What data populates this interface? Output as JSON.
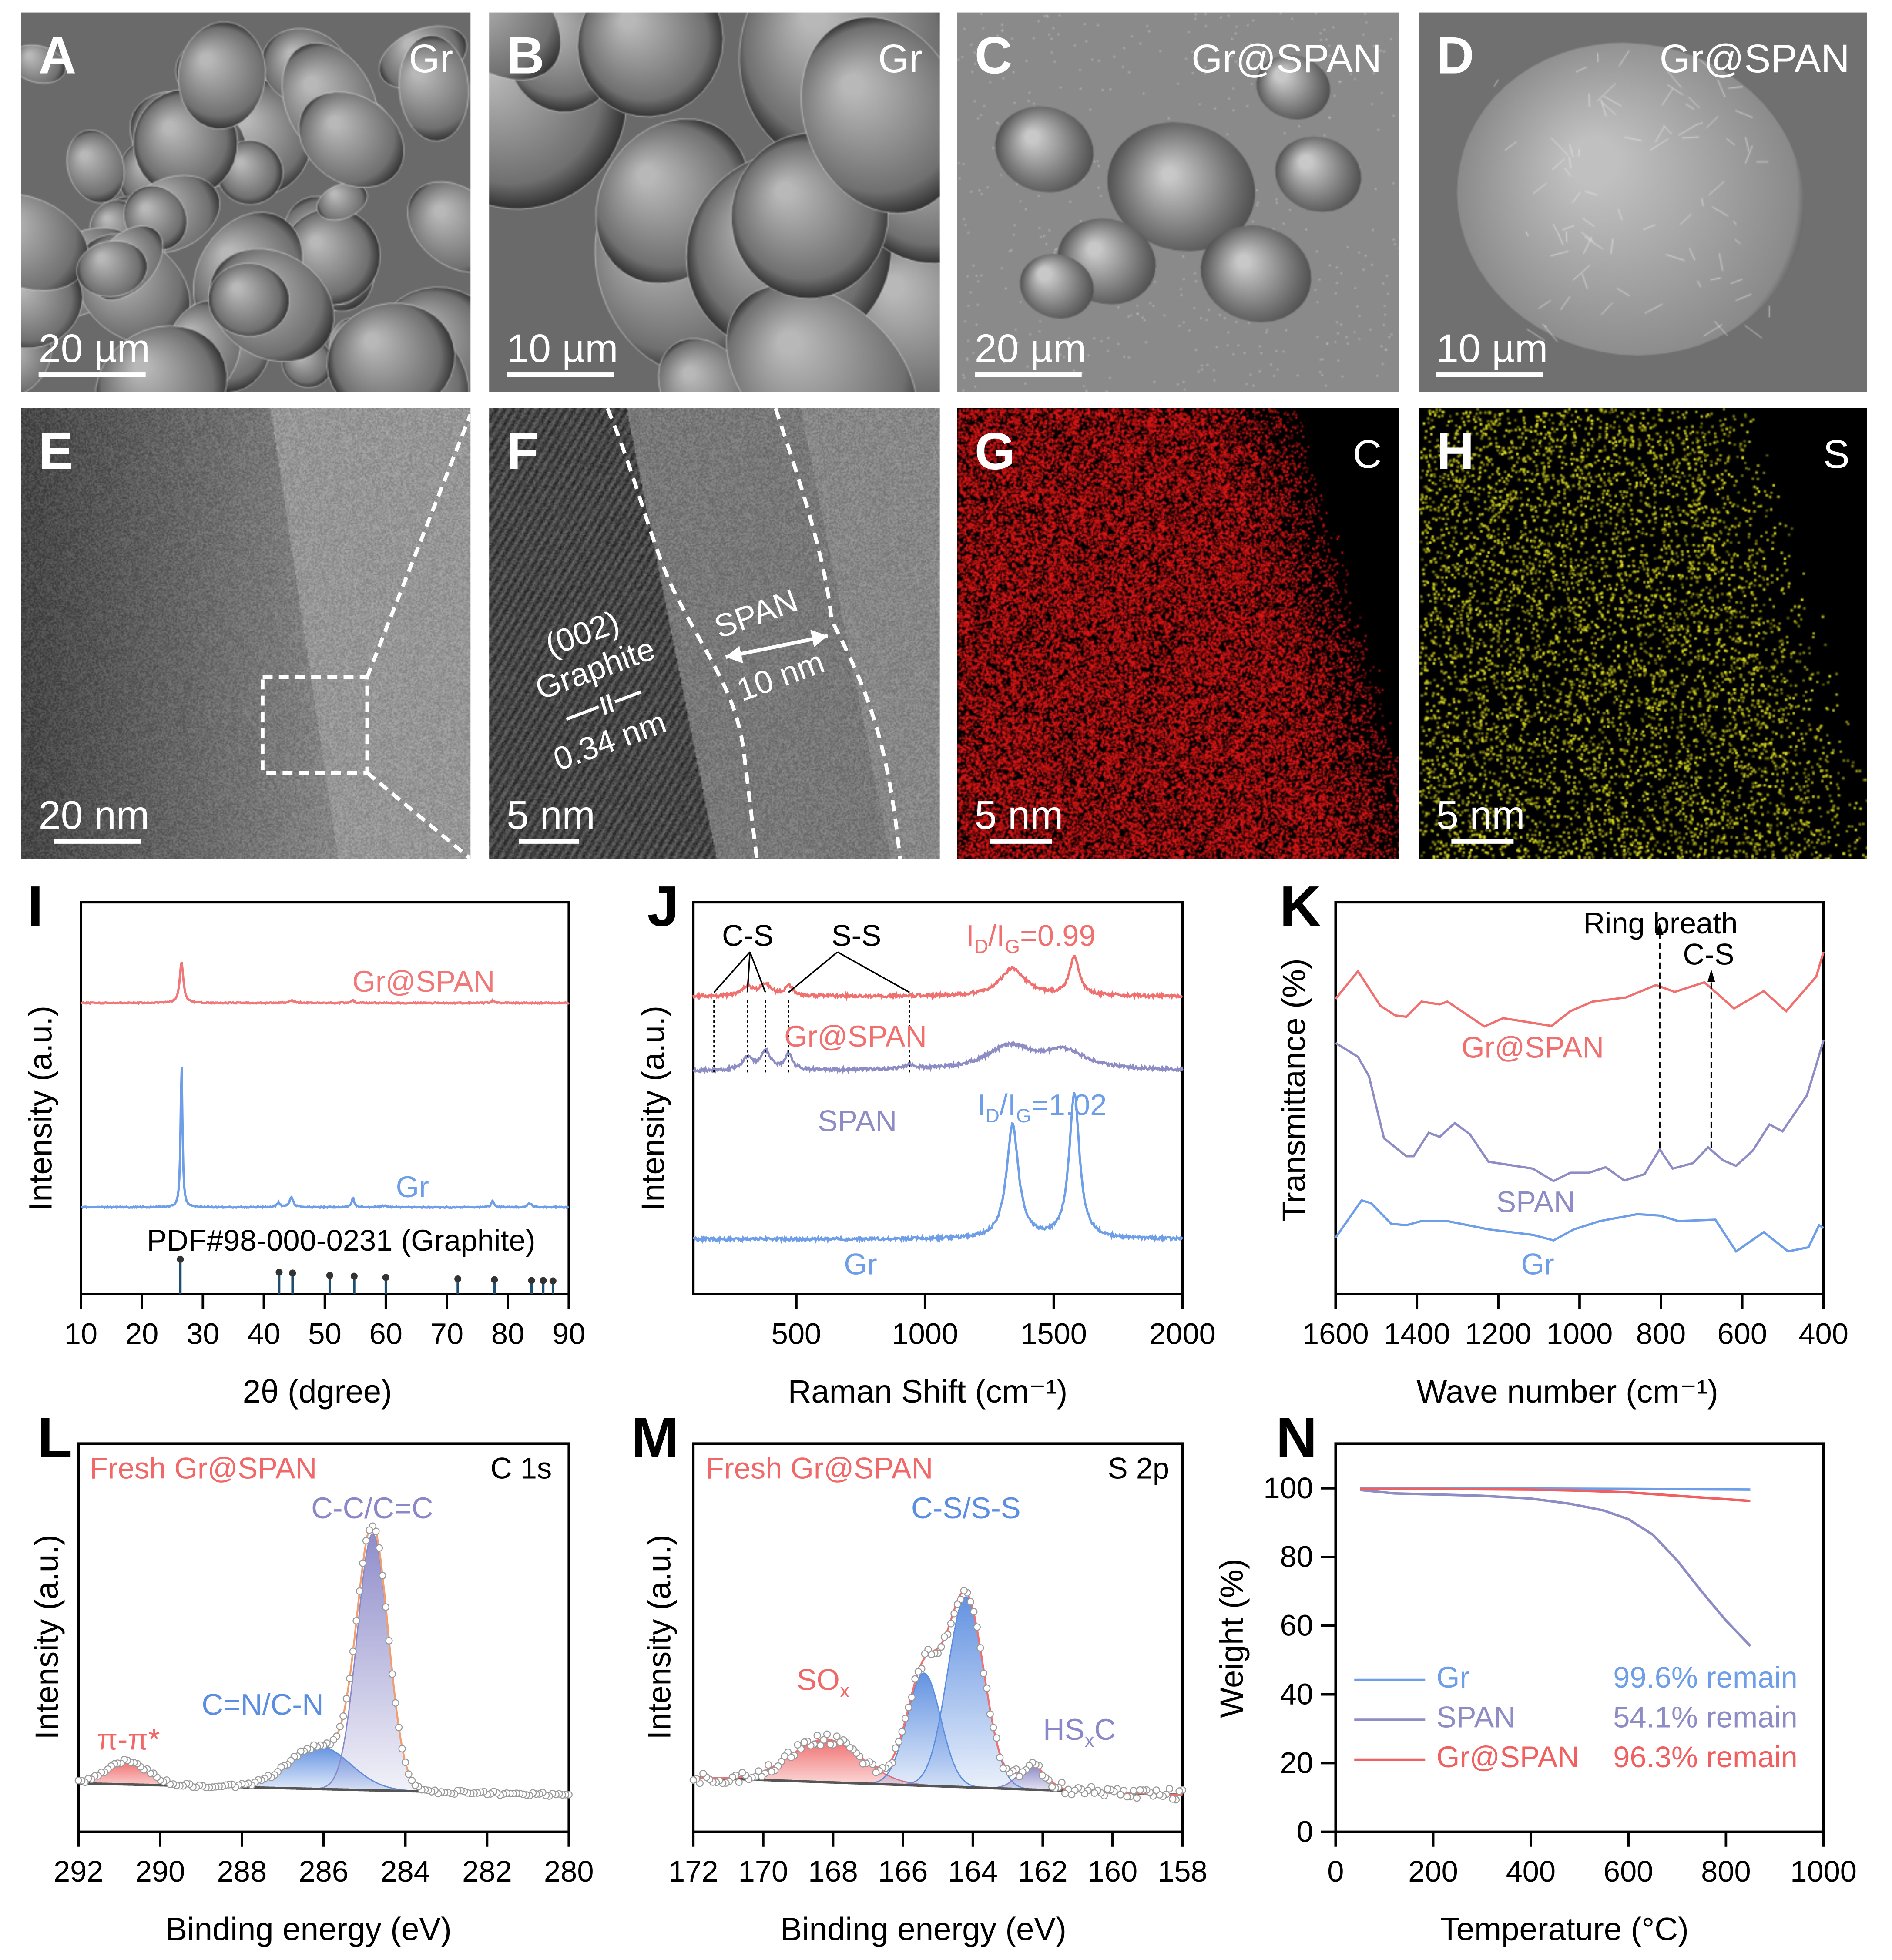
{
  "panels": {
    "A": {
      "letter": "A",
      "label": "Gr",
      "scale_bar": "20 µm"
    },
    "B": {
      "letter": "B",
      "label": "Gr",
      "scale_bar": "10 µm"
    },
    "C": {
      "letter": "C",
      "label": "Gr@SPAN",
      "scale_bar": "20 µm"
    },
    "D": {
      "letter": "D",
      "label": "Gr@SPAN",
      "scale_bar": "10 µm"
    },
    "E": {
      "letter": "E",
      "scale_bar": "20 nm"
    },
    "F": {
      "letter": "F",
      "scale_bar": "5 nm",
      "plane": "(002)",
      "material": "Graphite",
      "d_spacing": "0.34 nm",
      "layer": "SPAN",
      "thickness": "10 nm"
    },
    "G": {
      "letter": "G",
      "label": "C",
      "scale_bar": "5 nm",
      "color": "#e01818"
    },
    "H": {
      "letter": "H",
      "label": "S",
      "scale_bar": "5 nm",
      "color": "#d8d820"
    }
  },
  "chart_data": [
    {
      "panel": "I",
      "type": "line",
      "xlabel": "2θ (dgree)",
      "ylabel": "Intensity (a.u.)",
      "xlim": [
        10,
        90
      ],
      "ylim": [
        0,
        100
      ],
      "xticks": [
        10,
        20,
        30,
        40,
        50,
        60,
        70,
        80,
        90
      ],
      "series": [
        {
          "name": "Gr@SPAN",
          "color": "#f07878",
          "baseline": 74.3,
          "shape": "lorentz",
          "peaks": [
            [
              26.5,
              10.5,
              0.35
            ],
            [
              44.5,
              0.6,
              0.6
            ],
            [
              54.6,
              0.7,
              0.3
            ],
            [
              77.5,
              0.6,
              0.3
            ]
          ]
        },
        {
          "name": "Gr",
          "color": "#6f9ee8",
          "baseline": 22.2,
          "shape": "lorentz",
          "peaks": [
            [
              26.5,
              37,
              0.18
            ],
            [
              42.4,
              1.2,
              0.3
            ],
            [
              44.5,
              2.6,
              0.35
            ],
            [
              54.6,
              2.4,
              0.25
            ],
            [
              59.8,
              0.4,
              0.5
            ],
            [
              77.5,
              1.6,
              0.25
            ],
            [
              83.6,
              1.0,
              0.4
            ]
          ]
        }
      ],
      "reference": {
        "name": "PDF#98-000-0231 (Graphite)",
        "color": "#1f4e6e",
        "positions": [
          26.3,
          42.5,
          44.7,
          50.8,
          54.8,
          60.0,
          71.8,
          77.8,
          83.9,
          85.8,
          87.4
        ],
        "heights": [
          8.9,
          5.6,
          5.4,
          4.8,
          4.6,
          4.3,
          3.9,
          3.7,
          3.5,
          3.5,
          3.4
        ]
      }
    },
    {
      "panel": "J",
      "type": "line",
      "xlabel": "Raman Shift (cm⁻¹)",
      "ylabel": "Intensity (a.u.)",
      "xlim": [
        100,
        2000
      ],
      "ylim": [
        0,
        100
      ],
      "xticks": [
        500,
        1000,
        1500,
        2000
      ],
      "series": [
        {
          "name": "Gr@SPAN",
          "color": "#f07070",
          "baseline": 76,
          "shape": "lorentz",
          "peaks": [
            [
              310,
              2.5,
              25
            ],
            [
              380,
              3,
              25
            ],
            [
              470,
              2.5,
              20
            ],
            [
              1340,
              7,
              60
            ],
            [
              1580,
              10,
              22
            ]
          ]
        },
        {
          "name": "SPAN",
          "color": "#8e8cc4",
          "baseline": 57,
          "shape": "lorentz",
          "peaks": [
            [
              310,
              3,
              25
            ],
            [
              380,
              5,
              22
            ],
            [
              470,
              4,
              18
            ],
            [
              940,
              1,
              30
            ],
            [
              1330,
              6,
              110
            ],
            [
              1545,
              4.5,
              100
            ]
          ]
        },
        {
          "name": "Gr",
          "color": "#6f9ee8",
          "baseline": 14,
          "shape": "lorentz",
          "peaks": [
            [
              1340,
              29,
              28
            ],
            [
              1580,
              37,
              24
            ]
          ]
        }
      ],
      "annotations": {
        "cs": "C-S",
        "ss": "S-S",
        "ratio_gr_span": {
          "i": "I",
          "d": "D",
          "slash": "/I",
          "g": "G",
          "value": "=0.99"
        },
        "ratio_gr": {
          "i": "I",
          "d": "D",
          "slash": "/I",
          "g": "G",
          "value": "=1.02"
        },
        "marker_positions": [
          180,
          310,
          380,
          470,
          940
        ]
      }
    },
    {
      "panel": "K",
      "type": "line",
      "xlabel": "Wave number (cm⁻¹)",
      "ylabel": "Transmittance (%)",
      "xlim": [
        1600,
        400
      ],
      "ylim": [
        0,
        14.2
      ],
      "xticks": [
        1600,
        1400,
        1200,
        1000,
        800,
        600,
        400
      ],
      "series": [
        {
          "name": "Gr@SPAN",
          "color": "#f07070",
          "x": [
            1600,
            1545,
            1490,
            1453,
            1426,
            1389,
            1344,
            1325,
            1234,
            1188,
            1069,
            1023,
            968,
            886,
            812,
            766,
            693,
            620,
            547,
            492,
            418,
            400
          ],
          "y": [
            10.7,
            11.7,
            10.45,
            10.1,
            10.05,
            10.6,
            10.5,
            10.6,
            9.7,
            10.0,
            9.72,
            10.25,
            10.6,
            10.75,
            11.2,
            10.95,
            11.3,
            10.35,
            10.98,
            10.25,
            11.5,
            12.4
          ]
        },
        {
          "name": "SPAN",
          "color": "#8e8cc4",
          "x": [
            1600,
            1545,
            1518,
            1481,
            1426,
            1408,
            1371,
            1344,
            1307,
            1270,
            1224,
            1115,
            1064,
            1023,
            977,
            936,
            890,
            840,
            803,
            771,
            721,
            684,
            647,
            615,
            574,
            533,
            501,
            464,
            441,
            418,
            400
          ],
          "y": [
            9.1,
            8.6,
            7.9,
            5.65,
            5.0,
            5.0,
            5.85,
            5.7,
            6.2,
            5.8,
            4.8,
            4.55,
            4.1,
            4.4,
            4.4,
            4.6,
            4.12,
            4.35,
            5.25,
            4.55,
            4.75,
            5.32,
            4.85,
            4.65,
            5.2,
            6.15,
            5.9,
            6.7,
            7.2,
            8.3,
            9.2
          ]
        },
        {
          "name": "Gr",
          "color": "#6f9ee8",
          "x": [
            1600,
            1536,
            1513,
            1463,
            1426,
            1389,
            1325,
            1224,
            1115,
            1064,
            1014,
            950,
            858,
            803,
            757,
            666,
            615,
            547,
            487,
            437,
            411,
            400
          ],
          "y": [
            2.05,
            3.4,
            3.3,
            2.55,
            2.5,
            2.65,
            2.65,
            2.35,
            2.15,
            1.95,
            2.35,
            2.65,
            2.9,
            2.85,
            2.65,
            2.7,
            1.55,
            2.25,
            1.55,
            1.7,
            2.5,
            2.4
          ]
        }
      ],
      "annotations": {
        "ring": "Ring breath",
        "cs": "C-S",
        "ring_position": 803,
        "cs_position": 676
      }
    },
    {
      "panel": "L",
      "type": "line",
      "xlabel": "Binding energy (eV)",
      "ylabel": "Intensity (a.u.)",
      "title": "C 1s",
      "sample": "Fresh Gr@SPAN",
      "xlim": [
        292,
        280
      ],
      "ylim": [
        0,
        100
      ],
      "xticks": [
        292,
        290,
        288,
        286,
        284,
        282,
        280
      ],
      "baseline": [
        12.5,
        9.5
      ],
      "envelope_color": "#f0a070",
      "components": [
        {
          "name": "π-π*",
          "color": "#f06868",
          "center": 290.8,
          "height": 6,
          "sigma": 0.5
        },
        {
          "name": "C=N/C-N",
          "color": "#5b8de0",
          "center": 286.1,
          "height": 11,
          "sigma": 0.75
        },
        {
          "name": "C-C/C=C",
          "color": "#8a88c8",
          "center": 284.8,
          "height": 66,
          "sigma": 0.38
        }
      ]
    },
    {
      "panel": "M",
      "type": "line",
      "xlabel": "Binding energy (eV)",
      "ylabel": "Intensity (a.u.)",
      "title": "S 2p",
      "sample": "Fresh Gr@SPAN",
      "xlim": [
        172,
        158
      ],
      "ylim": [
        0,
        100
      ],
      "xticks": [
        172,
        170,
        168,
        166,
        164,
        162,
        160,
        158
      ],
      "baseline": [
        14,
        9.5
      ],
      "envelope_color": "#f07070",
      "components": [
        {
          "name": "SOx",
          "color": "#f06868",
          "center": 168.2,
          "height": 11,
          "sigma": 1.0
        },
        {
          "name": "C-S/S-S",
          "color": "#5b8de0",
          "center": 165.4,
          "height": 29,
          "sigma": 0.48
        },
        {
          "name": "C-S/S-S",
          "color": "#5b8de0",
          "center": 164.2,
          "height": 49,
          "sigma": 0.52
        },
        {
          "name": "HSxC",
          "color": "#8a88c8",
          "center": 162.3,
          "height": 6,
          "sigma": 0.4
        }
      ],
      "labels": {
        "sox": "SO",
        "sox_sub": "x",
        "cs": "C-S/S-S",
        "hs": "HS",
        "hs_sub": "x",
        "hs_c": "C"
      }
    },
    {
      "panel": "N",
      "type": "line",
      "xlabel": "Temperature (°C)",
      "ylabel": "Weight (%)",
      "xlim": [
        0,
        1000
      ],
      "ylim": [
        0,
        113
      ],
      "xticks": [
        0,
        200,
        400,
        600,
        800,
        1000
      ],
      "yticks": [
        0,
        20,
        40,
        60,
        80,
        100
      ],
      "legend": "middle-left",
      "series": [
        {
          "name": "Gr",
          "remain": "99.6% remain",
          "color": "#6f9ee8",
          "x": [
            50,
            200,
            400,
            600,
            850
          ],
          "y": [
            100,
            100,
            99.9,
            99.8,
            99.6
          ]
        },
        {
          "name": "SPAN",
          "remain": "54.1% remain",
          "color": "#8e8cc4",
          "x": [
            50,
            120,
            200,
            300,
            400,
            480,
            550,
            600,
            650,
            700,
            750,
            800,
            850
          ],
          "y": [
            99.5,
            98.5,
            98.2,
            97.8,
            97,
            95.5,
            93.5,
            91,
            86.5,
            79,
            70,
            61.5,
            54.1
          ]
        },
        {
          "name": "Gr@SPAN",
          "remain": "96.3% remain",
          "color": "#f06060",
          "x": [
            50,
            200,
            400,
            500,
            600,
            700,
            800,
            850
          ],
          "y": [
            99.8,
            99.8,
            99.6,
            99.3,
            98.8,
            97.8,
            96.8,
            96.3
          ]
        }
      ]
    }
  ]
}
